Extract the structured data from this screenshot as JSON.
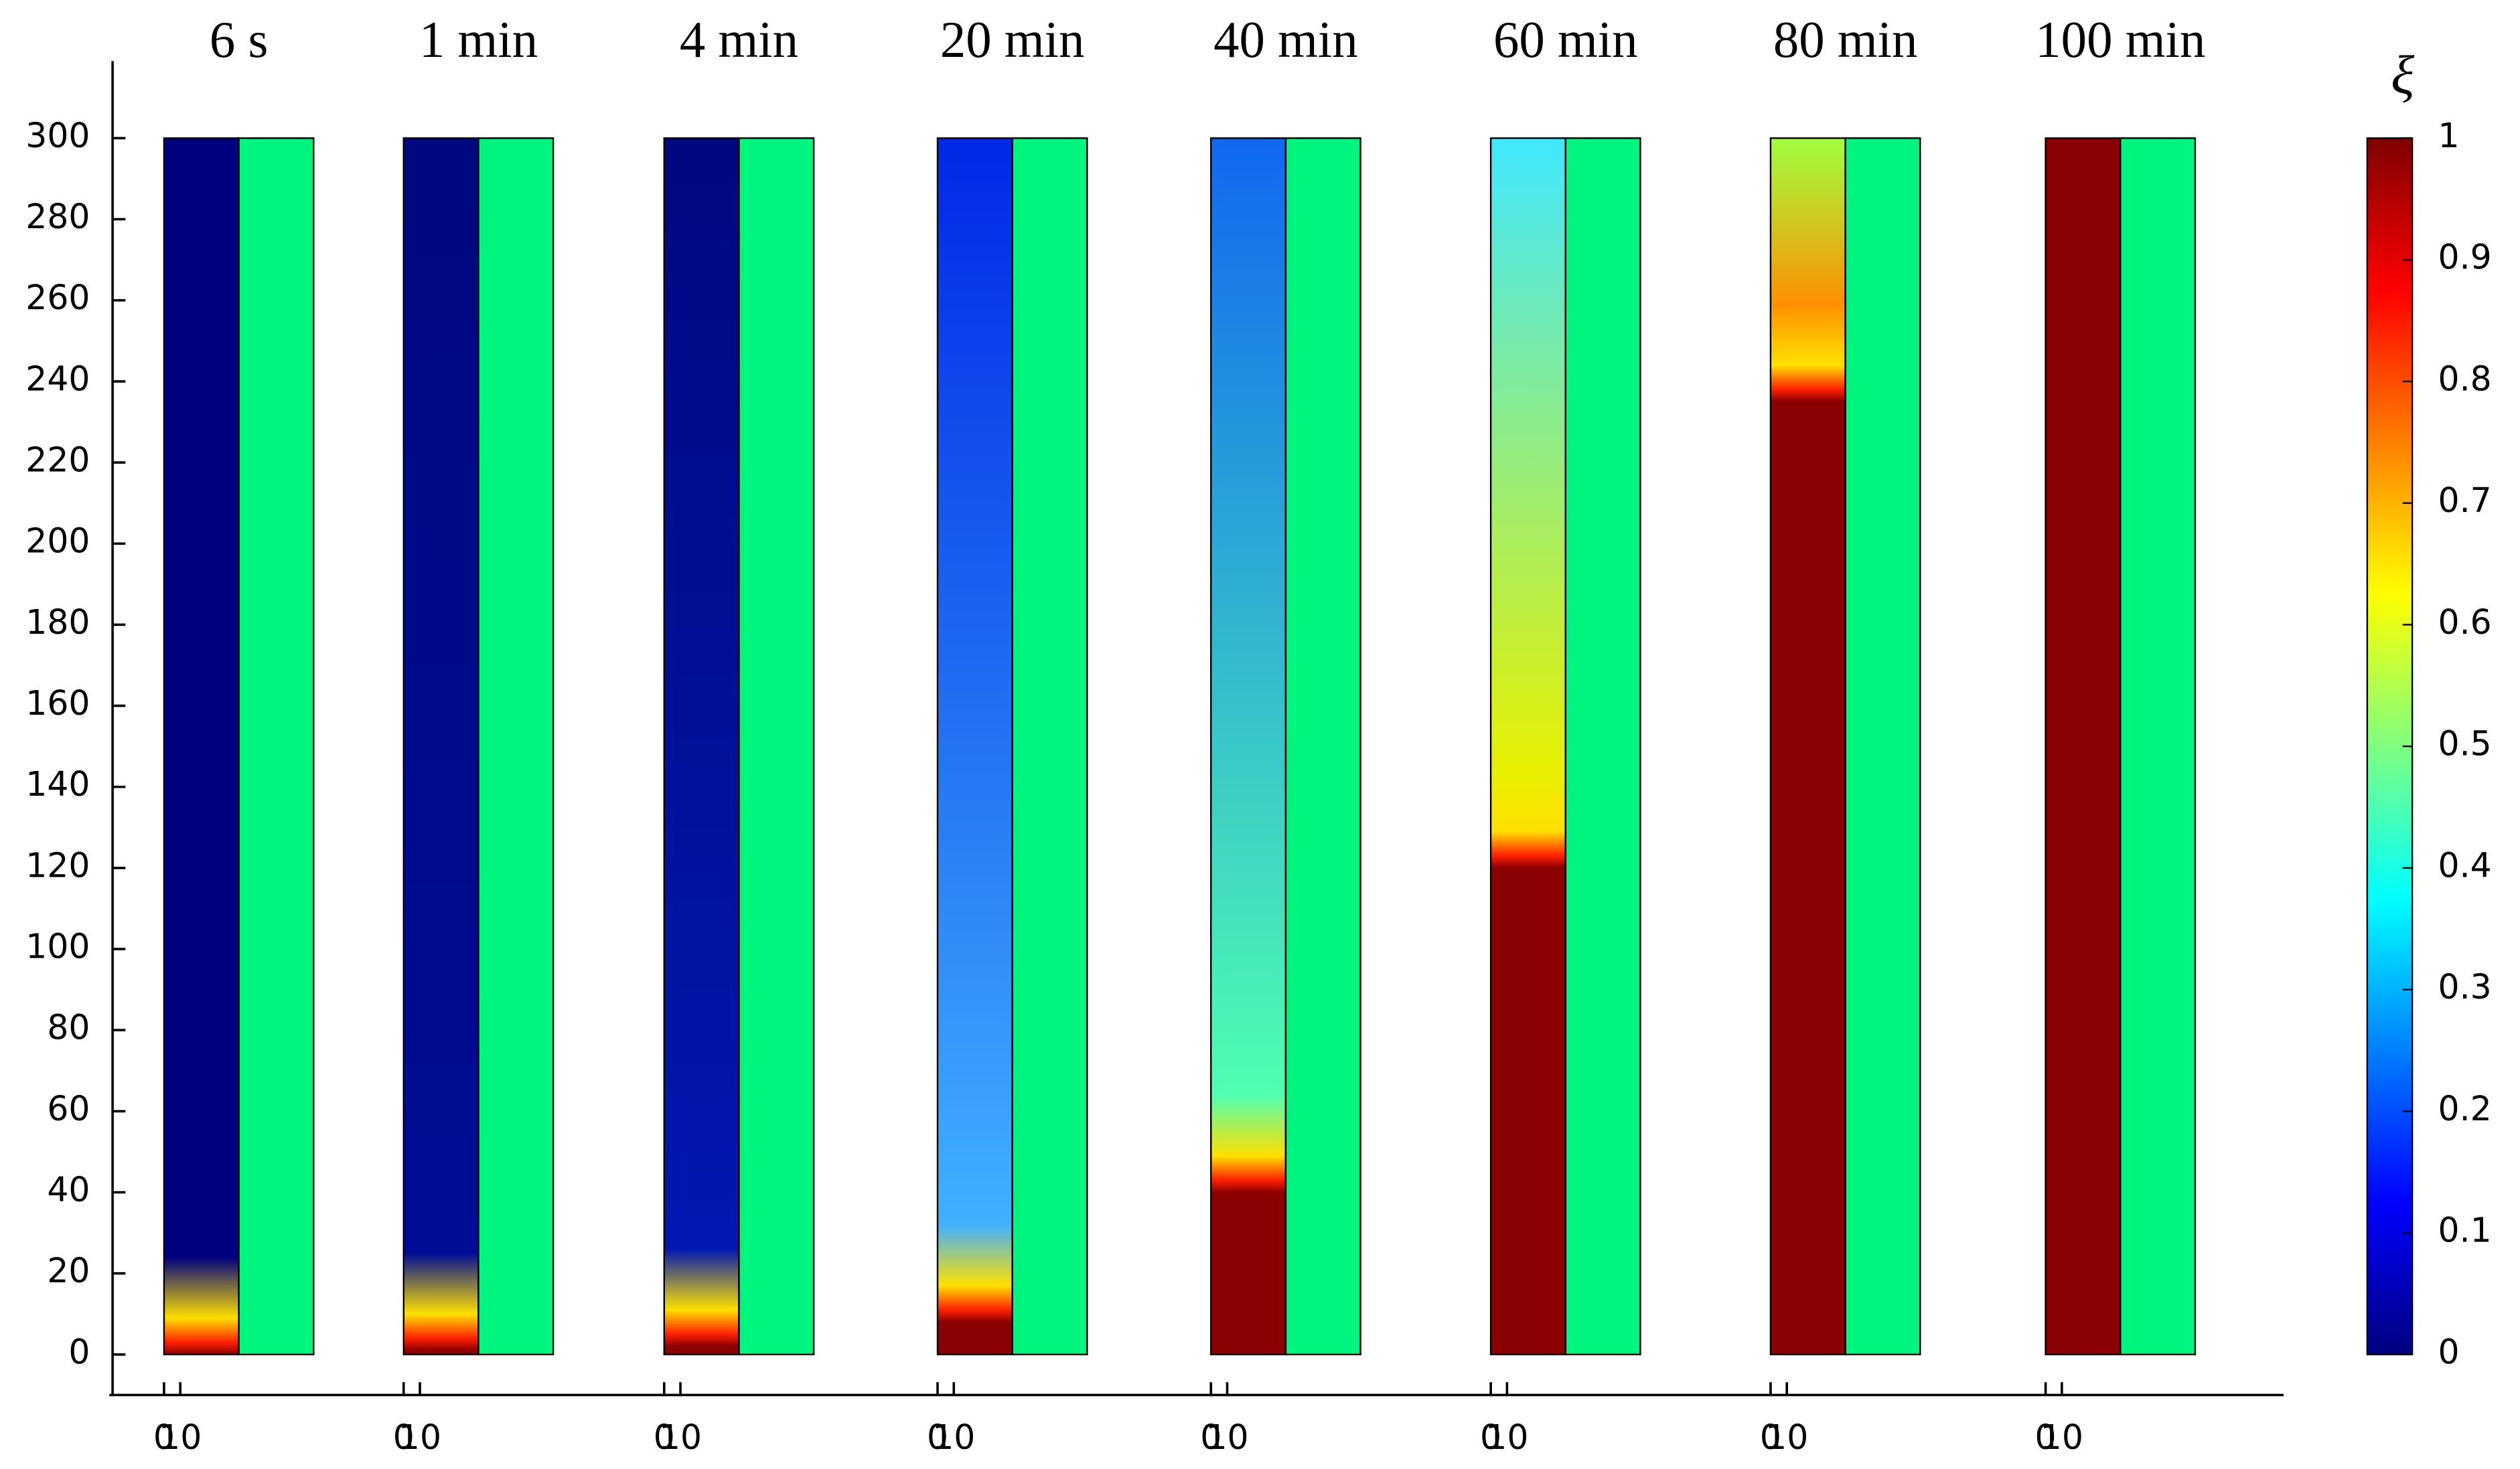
{
  "chart_data": {
    "type": "heatmap",
    "panels": [
      {
        "title": "6 s",
        "front": 0,
        "colors": [
          "#00007f",
          "#00007f"
        ]
      },
      {
        "title": "1 min",
        "front": 1,
        "colors": [
          "#00087f",
          "#000c95"
        ]
      },
      {
        "title": "4 min",
        "front": 2,
        "colors": [
          "#00087f",
          "#0018b0"
        ]
      },
      {
        "title": "20 min",
        "front": 8,
        "colors": [
          "#0028e6",
          "#40b0ff"
        ]
      },
      {
        "title": "40 min",
        "front": 40,
        "colors": [
          "#1068f0",
          "#50ffb0"
        ]
      },
      {
        "title": "60 min",
        "front": 120,
        "colors": [
          "#40e8ff",
          "#e8f000"
        ]
      },
      {
        "title": "80 min",
        "front": 235,
        "colors": [
          "#a0ff40",
          "#ff9000"
        ]
      },
      {
        "title": "100 min",
        "front": 300,
        "colors": [
          "#8b0000",
          "#8b0000"
        ]
      }
    ],
    "solid_color": "#8b0000",
    "gel_color": "#00f57f",
    "ylim": [
      -10,
      319
    ],
    "yticks": [
      0,
      20,
      40,
      60,
      80,
      100,
      120,
      140,
      160,
      180,
      200,
      220,
      240,
      260,
      280,
      300
    ],
    "xlim": [
      0,
      10
    ],
    "xticks": [
      0,
      10
    ],
    "colorbar": {
      "label": "ξ",
      "clim": [
        0,
        1
      ],
      "ticks": [
        0,
        0.1,
        0.2,
        0.3,
        0.4,
        0.5,
        0.6,
        0.7,
        0.8,
        0.9,
        1
      ],
      "colormap": [
        "#00007f",
        "#0000ff",
        "#0080ff",
        "#00ffff",
        "#80ff80",
        "#ffff00",
        "#ff8000",
        "#ff0000",
        "#7f0000"
      ]
    }
  }
}
